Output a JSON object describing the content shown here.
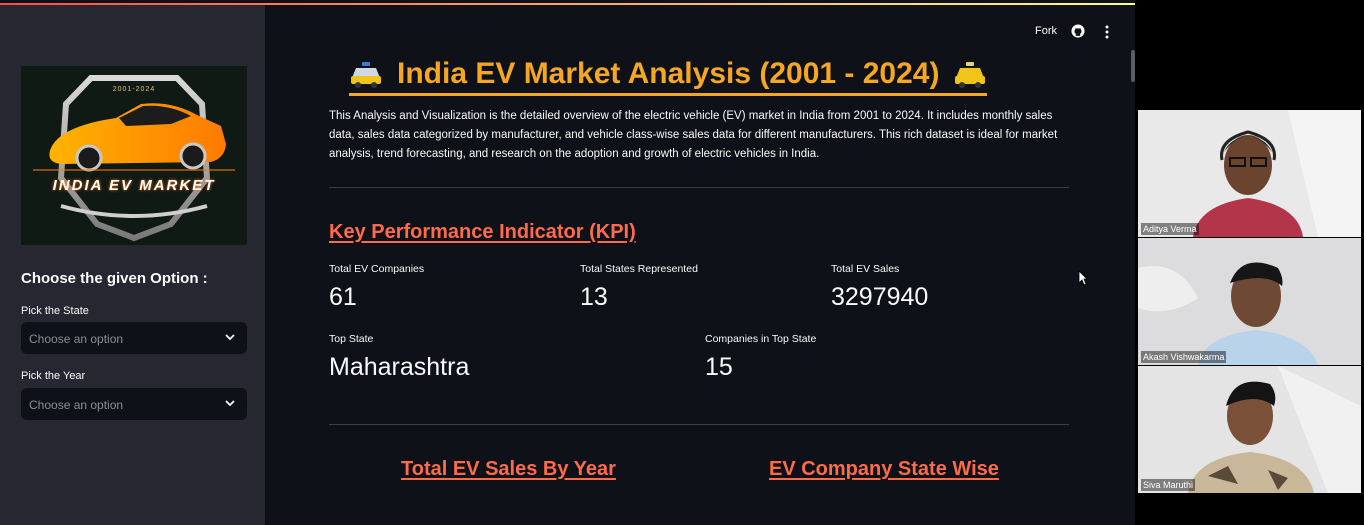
{
  "toolbar": {
    "fork_label": "Fork"
  },
  "sidebar": {
    "logo": {
      "years": "2001-2024",
      "text": "INDIA EV MARKET"
    },
    "heading": "Choose the given Option :",
    "state_field": {
      "label": "Pick the State",
      "placeholder": "Choose an option"
    },
    "year_field": {
      "label": "Pick the Year",
      "placeholder": "Choose an option"
    }
  },
  "main": {
    "title": "India EV Market Analysis (2001 - 2024)",
    "description": "This Analysis and Visualization is the detailed overview of the electric vehicle (EV) market in India from 2001 to 2024. It includes monthly sales data, sales data categorized by manufacturer, and vehicle class-wise sales data for different manufacturers. This rich dataset is ideal for market analysis, trend forecasting, and research on the adoption and growth of electric vehicles in India.",
    "kpi_heading": "Key Performance Indicator (KPI)",
    "metrics": [
      {
        "label": "Total EV Companies",
        "value": "61"
      },
      {
        "label": "Total States Represented",
        "value": "13"
      },
      {
        "label": "Total EV Sales",
        "value": "3297940"
      },
      {
        "label": "Top State",
        "value": "Maharashtra"
      },
      {
        "label": "Companies in Top State",
        "value": "15"
      }
    ],
    "sections": [
      {
        "label": "Total EV Sales By Year"
      },
      {
        "label": "EV Company State Wise"
      }
    ]
  },
  "participants": [
    {
      "name": "Aditya Verma"
    },
    {
      "name": "Akash Vishwakarma"
    },
    {
      "name": "Siva Maruthi"
    }
  ],
  "colors": {
    "title": "#f5a623",
    "heading": "#ff6b4a",
    "app_bg": "#0e1117",
    "sidebar_bg": "#262730"
  },
  "icons": [
    "taxi-icon",
    "github-icon",
    "kebab-menu-icon",
    "chevron-down-icon",
    "mouse-cursor-icon"
  ]
}
